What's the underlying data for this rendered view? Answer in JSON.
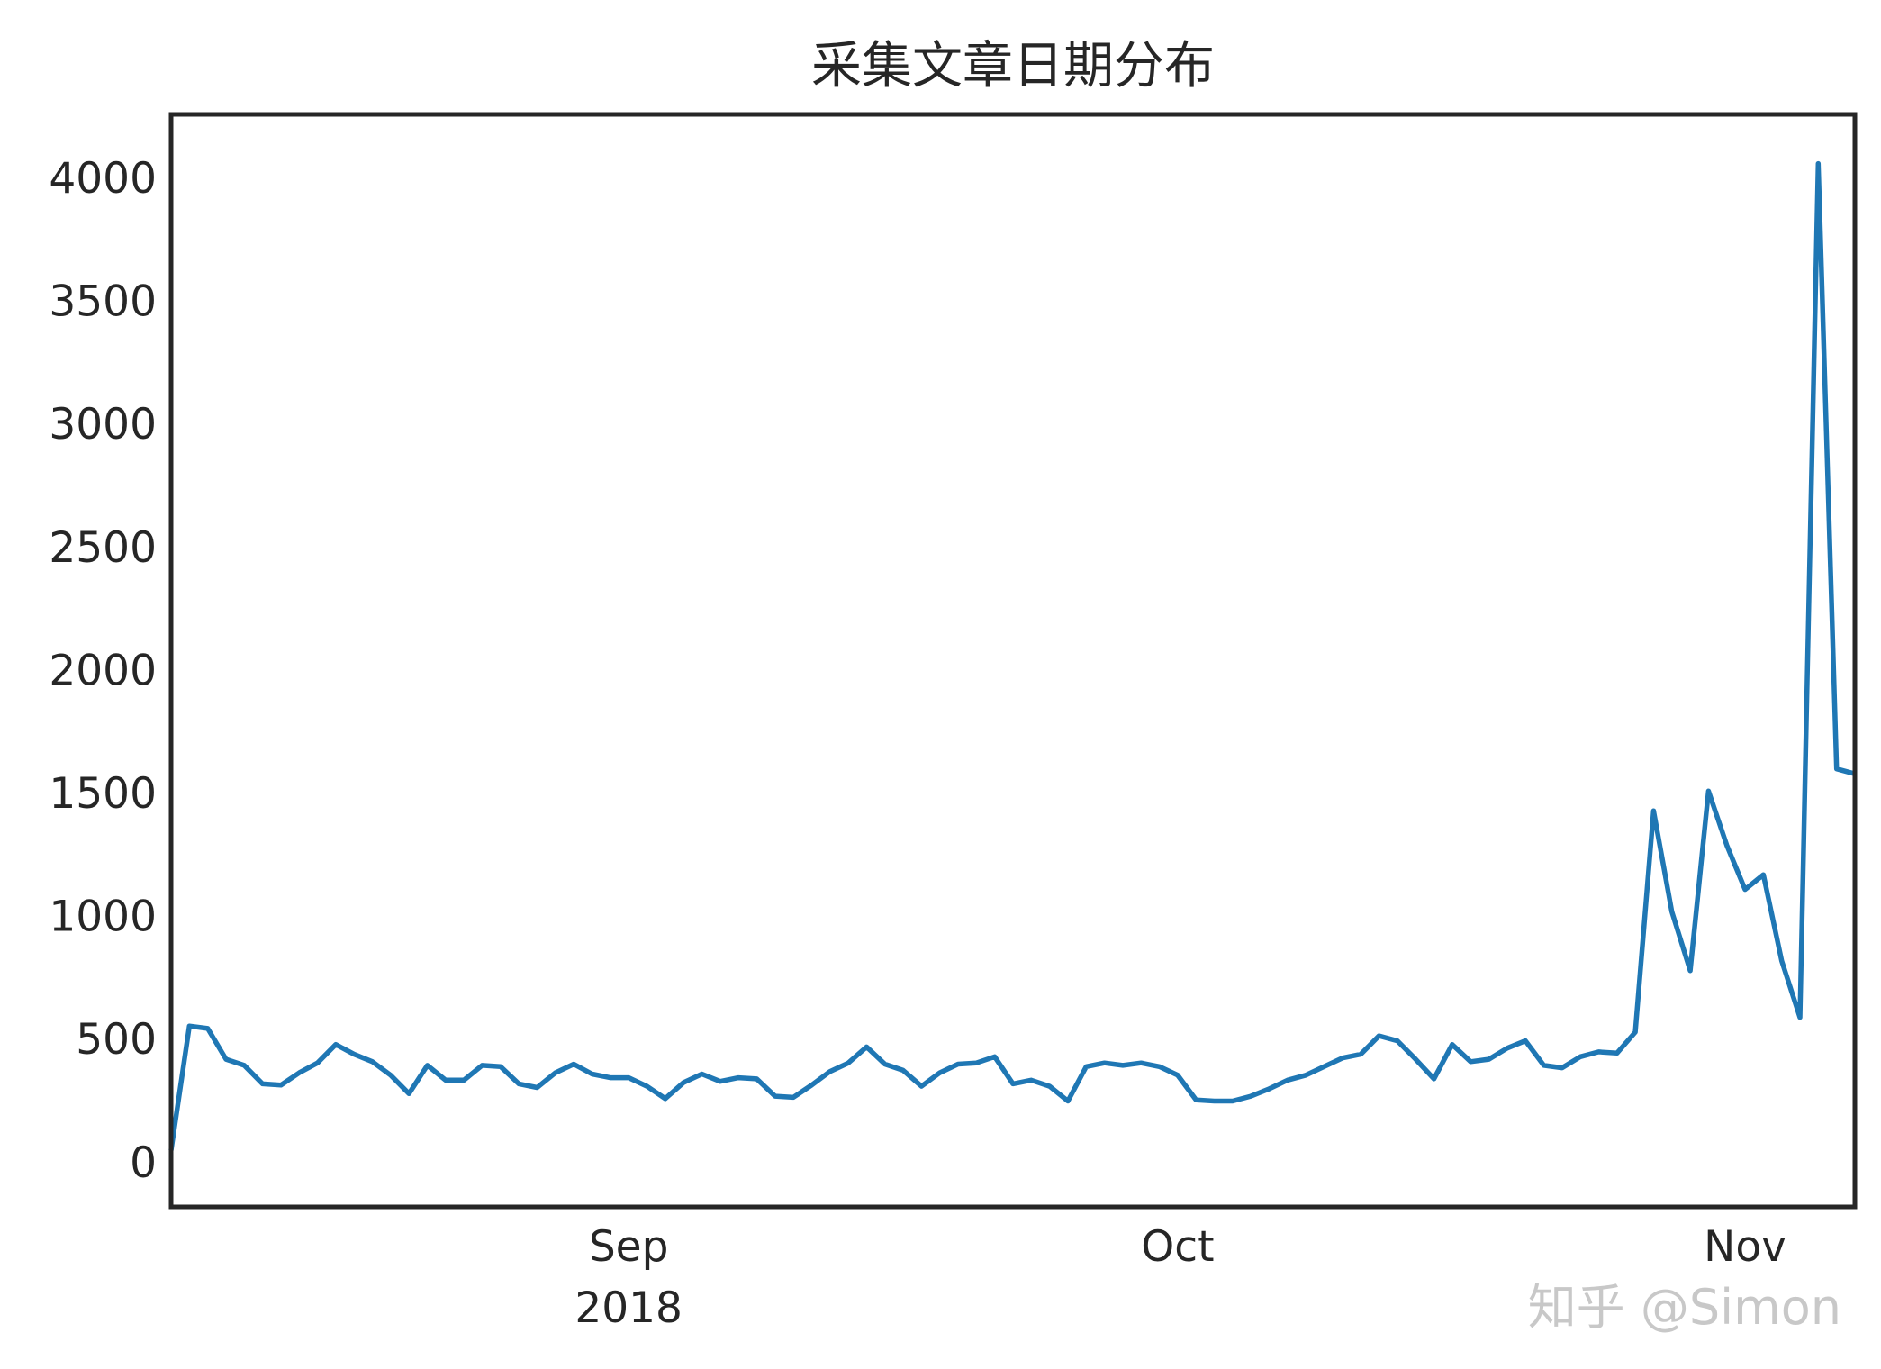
{
  "chart_data": {
    "type": "line",
    "title": "采集文章日期分布",
    "xlabel": "",
    "ylabel": "",
    "x_start": "2018-08-07",
    "x_end": "2018-11-07",
    "xlim": [
      "2018-08-07",
      "2018-11-07"
    ],
    "ylim": [
      -180,
      4260
    ],
    "grid": false,
    "legend": "none",
    "line_color": "#1f77b4",
    "x_ticks": [
      {
        "date": "2018-09-01",
        "label": "Sep",
        "sublabel": "2018"
      },
      {
        "date": "2018-10-01",
        "label": "Oct",
        "sublabel": ""
      },
      {
        "date": "2018-11-01",
        "label": "Nov",
        "sublabel": ""
      }
    ],
    "y_ticks": [
      0,
      500,
      1000,
      1500,
      2000,
      2500,
      3000,
      3500,
      4000
    ],
    "series": [
      {
        "x": [
          "2018-08-07",
          "2018-08-08",
          "2018-08-09",
          "2018-08-10",
          "2018-08-11",
          "2018-08-12",
          "2018-08-13",
          "2018-08-14",
          "2018-08-15",
          "2018-08-16",
          "2018-08-17",
          "2018-08-18",
          "2018-08-19",
          "2018-08-20",
          "2018-08-21",
          "2018-08-22",
          "2018-08-23",
          "2018-08-24",
          "2018-08-25",
          "2018-08-26",
          "2018-08-27",
          "2018-08-28",
          "2018-08-29",
          "2018-08-30",
          "2018-08-31",
          "2018-09-01",
          "2018-09-02",
          "2018-09-03",
          "2018-09-04",
          "2018-09-05",
          "2018-09-06",
          "2018-09-07",
          "2018-09-08",
          "2018-09-09",
          "2018-09-10",
          "2018-09-11",
          "2018-09-12",
          "2018-09-13",
          "2018-09-14",
          "2018-09-15",
          "2018-09-16",
          "2018-09-17",
          "2018-09-18",
          "2018-09-19",
          "2018-09-20",
          "2018-09-21",
          "2018-09-22",
          "2018-09-23",
          "2018-09-24",
          "2018-09-25",
          "2018-09-26",
          "2018-09-27",
          "2018-09-28",
          "2018-09-29",
          "2018-09-30",
          "2018-10-01",
          "2018-10-02",
          "2018-10-03",
          "2018-10-04",
          "2018-10-05",
          "2018-10-06",
          "2018-10-07",
          "2018-10-08",
          "2018-10-09",
          "2018-10-10",
          "2018-10-11",
          "2018-10-12",
          "2018-10-13",
          "2018-10-14",
          "2018-10-15",
          "2018-10-16",
          "2018-10-17",
          "2018-10-18",
          "2018-10-19",
          "2018-10-20",
          "2018-10-21",
          "2018-10-22",
          "2018-10-23",
          "2018-10-24",
          "2018-10-25",
          "2018-10-26",
          "2018-10-27",
          "2018-10-28",
          "2018-10-29",
          "2018-10-30",
          "2018-10-31",
          "2018-11-01",
          "2018-11-02",
          "2018-11-03",
          "2018-11-04",
          "2018-11-05",
          "2018-11-06",
          "2018-11-07"
        ],
        "values": [
          50,
          555,
          545,
          420,
          395,
          320,
          315,
          365,
          405,
          480,
          440,
          410,
          355,
          280,
          395,
          335,
          335,
          395,
          390,
          320,
          305,
          365,
          400,
          360,
          345,
          345,
          310,
          260,
          325,
          360,
          330,
          345,
          340,
          270,
          265,
          315,
          370,
          405,
          470,
          400,
          375,
          310,
          365,
          400,
          405,
          430,
          320,
          335,
          310,
          250,
          390,
          405,
          395,
          405,
          390,
          355,
          255,
          250,
          250,
          270,
          300,
          335,
          355,
          390,
          425,
          440,
          515,
          495,
          420,
          340,
          480,
          410,
          420,
          465,
          495,
          395,
          385,
          430,
          450,
          445,
          530,
          1430,
          1020,
          780,
          1510,
          1290,
          1110,
          1170,
          820,
          590,
          4060,
          1600,
          1580
        ]
      }
    ]
  },
  "watermark": "知乎 @Simon"
}
